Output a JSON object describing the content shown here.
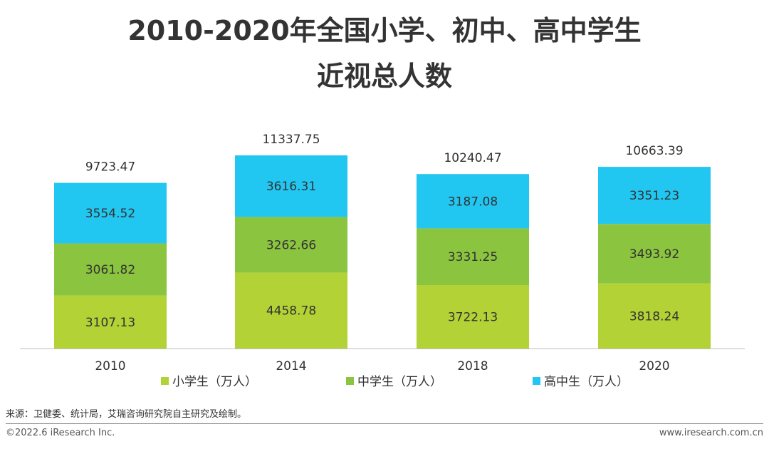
{
  "title_line1": "2010-2020年全国小学、初中、高中学生",
  "title_line2": "近视总人数",
  "source": "来源：卫健委、统计局，艾瑞咨询研究院自主研究及绘制。",
  "copyright": "©2022.6 iResearch Inc.",
  "website": "www.iresearch.com.cn",
  "colors": {
    "primary": "#B2D235",
    "middle": "#8BC43F",
    "high": "#21C6F1",
    "axis": "#BFBFBF",
    "text": "#333333"
  },
  "chart_data": {
    "type": "bar",
    "stacked": true,
    "categories": [
      "2010",
      "2014",
      "2018",
      "2020"
    ],
    "series": [
      {
        "name": "小学生（万人）",
        "color": "#B2D235",
        "values": [
          3107.13,
          4458.78,
          3722.13,
          3818.24
        ]
      },
      {
        "name": "中学生（万人）",
        "color": "#8BC43F",
        "values": [
          3061.82,
          3262.66,
          3331.25,
          3493.92
        ]
      },
      {
        "name": "高中生（万人）",
        "color": "#21C6F1",
        "values": [
          3554.52,
          3616.31,
          3187.08,
          3351.23
        ]
      }
    ],
    "totals": [
      "9723.47",
      "11337.75",
      "10240.47",
      "10663.39"
    ],
    "legend_position": "bottom",
    "grid": false
  }
}
